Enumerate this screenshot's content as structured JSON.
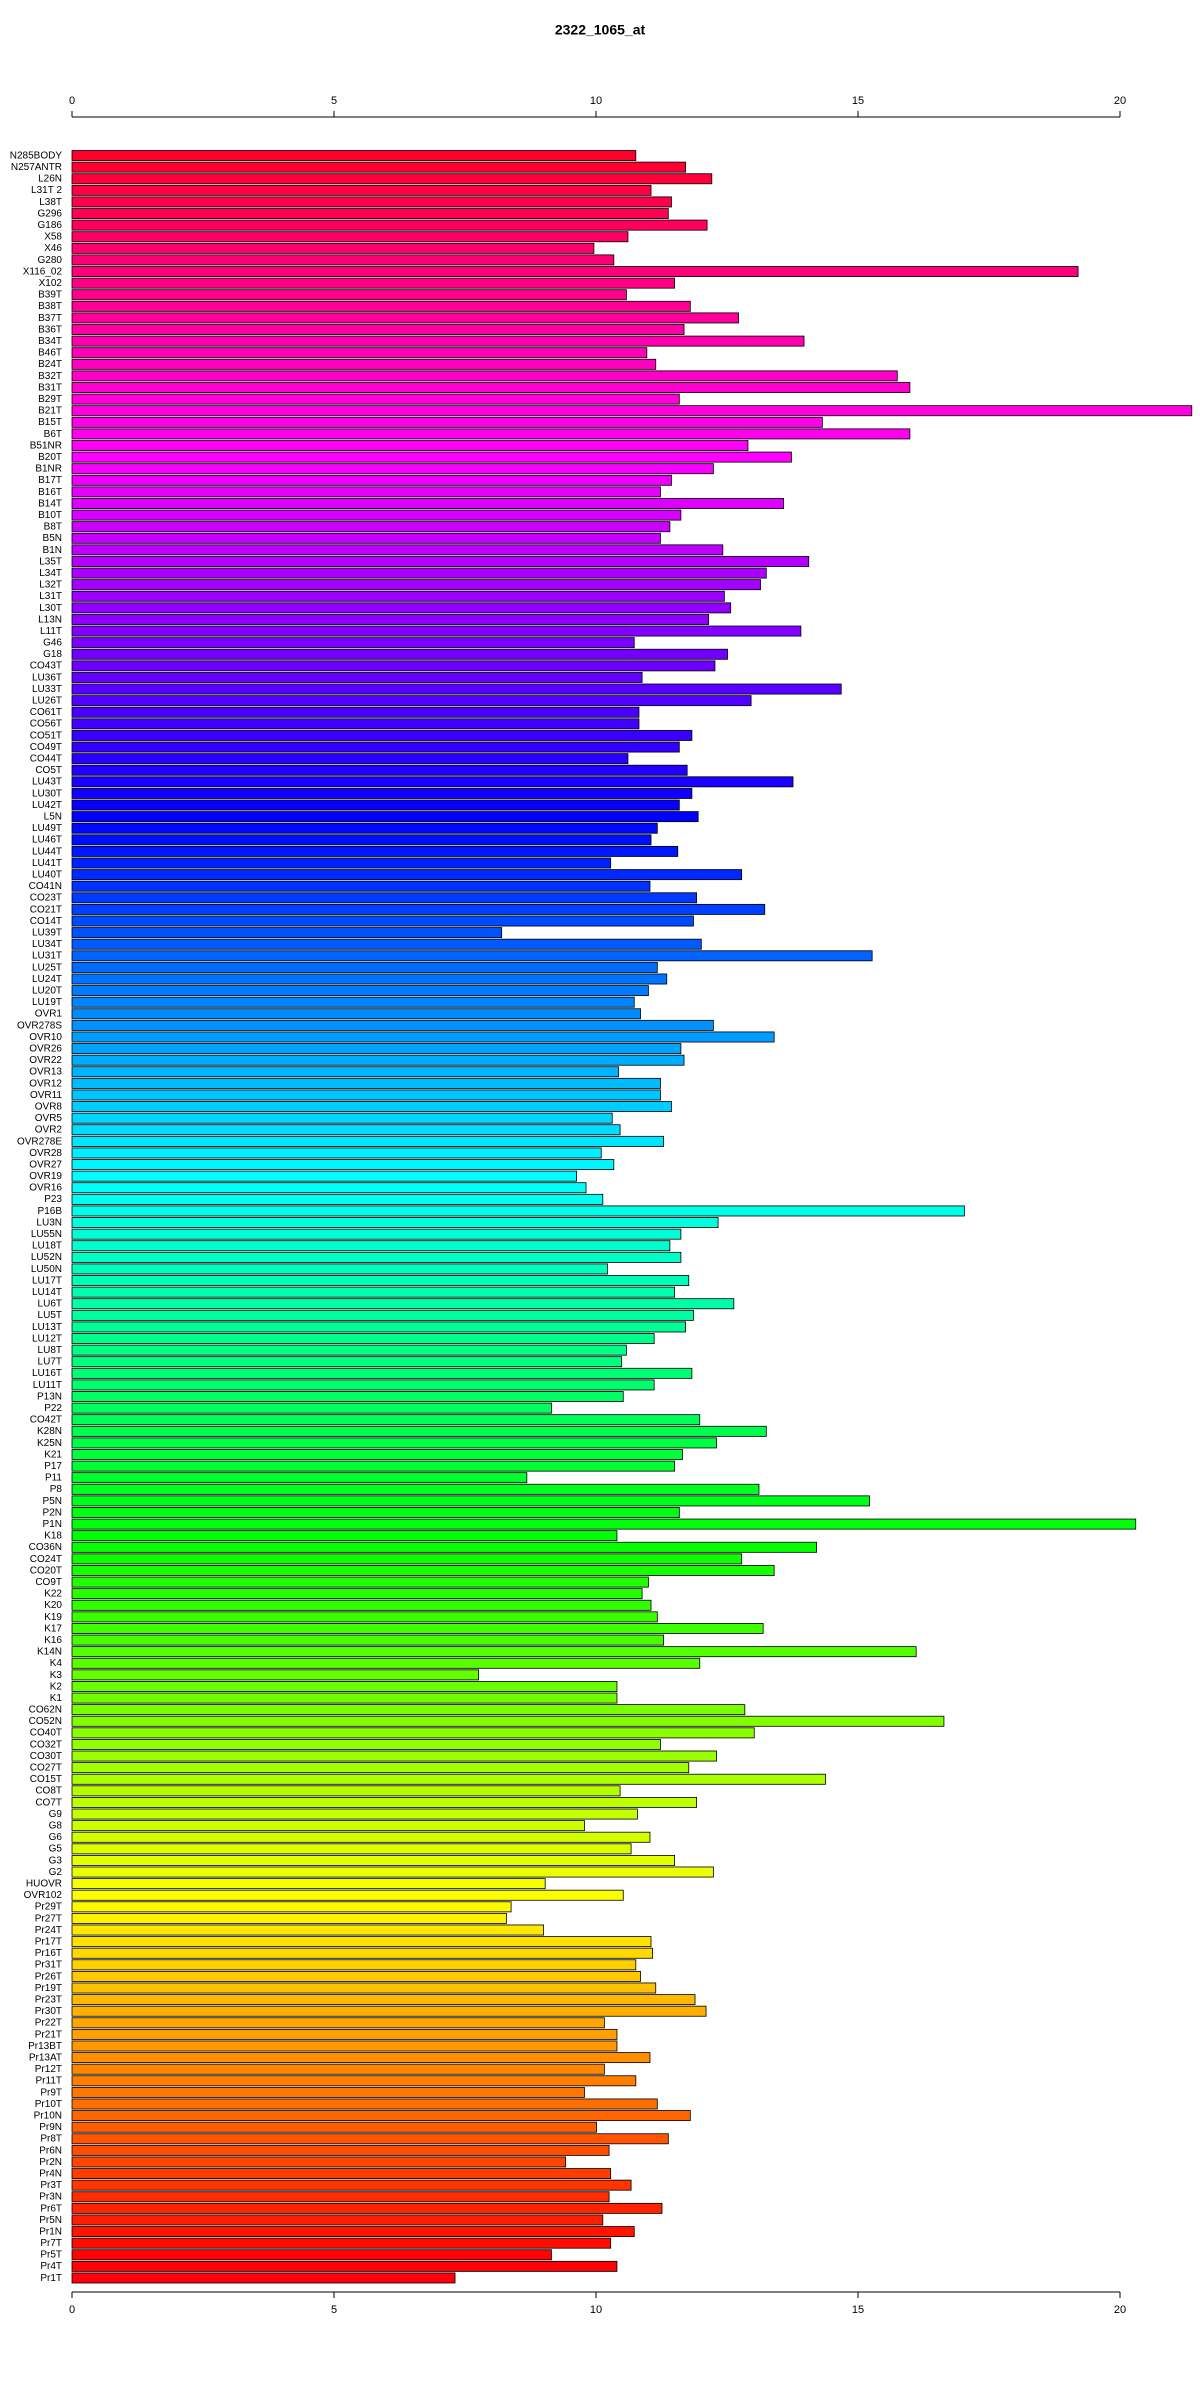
{
  "chart_data": {
    "type": "barh",
    "title": "2322_1065_at",
    "categories": [
      "N285BODY",
      "N257ANTR",
      "L26N",
      "L31T 2",
      "L38T",
      "G296",
      "G186",
      "X58",
      "X46",
      "G280",
      "X116_02",
      "X102",
      "B39T",
      "B38T",
      "B37T",
      "B36T",
      "B34T",
      "B46T",
      "B24T",
      "B32T",
      "B31T",
      "B29T",
      "B21T",
      "B15T",
      "B6T",
      "B51NR",
      "B20T",
      "B1NR",
      "B17T",
      "B16T",
      "B14T",
      "B10T",
      "B8T",
      "B5N",
      "B1N",
      "L35T",
      "L34T",
      "L32T",
      "L31T",
      "L30T",
      "L13N",
      "L11T",
      "G46",
      "G18",
      "CO43T",
      "LU36T",
      "LU33T",
      "LU26T",
      "CO61T",
      "CO56T",
      "CO51T",
      "CO49T",
      "CO44T",
      "CO5T",
      "LU43T",
      "LU30T",
      "LU42T",
      "L5N",
      "LU49T",
      "LU46T",
      "LU44T",
      "LU41T",
      "LU40T",
      "CO41N",
      "CO23T",
      "CO21T",
      "CO14T",
      "LU39T",
      "LU34T",
      "LU31T",
      "LU25T",
      "LU24T",
      "LU20T",
      "LU19T",
      "OVR1",
      "OVR278S",
      "OVR10",
      "OVR26",
      "OVR22",
      "OVR13",
      "OVR12",
      "OVR11",
      "OVR8",
      "OVR5",
      "OVR2",
      "OVR278E",
      "OVR28",
      "OVR27",
      "OVR19",
      "OVR16",
      "P23",
      "P16B",
      "LU3N",
      "LU55N",
      "LU18T",
      "LU52N",
      "LU50N",
      "LU17T",
      "LU14T",
      "LU6T",
      "LU5T",
      "LU13T",
      "LU12T",
      "LU8T",
      "LU7T",
      "LU16T",
      "LU11T",
      "P13N",
      "P22",
      "CO42T",
      "K28N",
      "K25N",
      "K21",
      "P17",
      "P11",
      "P8",
      "P5N",
      "P2N",
      "P1N",
      "K18",
      "CO36N",
      "CO24T",
      "CO20T",
      "CO9T",
      "K22",
      "K20",
      "K19",
      "K17",
      "K16",
      "K14N",
      "K4",
      "K3",
      "K2",
      "K1",
      "CO62N",
      "CO52N",
      "CO40T",
      "CO32T",
      "CO30T",
      "CO27T",
      "CO15T",
      "CO8T",
      "CO7T",
      "G9",
      "G8",
      "G6",
      "G5",
      "G3",
      "G2",
      "HUOVR",
      "OVR102",
      "Pr29T",
      "Pr27T",
      "Pr24T",
      "Pr17T",
      "Pr16T",
      "Pr31T",
      "Pr26T",
      "Pr19T",
      "Pr23T",
      "Pr30T",
      "Pr22T",
      "Pr21T",
      "Pr13BT",
      "Pr13AT",
      "Pr12T",
      "Pr11T",
      "Pr9T",
      "Pr10T",
      "Pr10N",
      "Pr9N",
      "Pr8T",
      "Pr6N",
      "Pr2N",
      "Pr4N",
      "Pr3T",
      "Pr3N",
      "Pr6T",
      "Pr5N",
      "Pr1N",
      "Pr7T",
      "Pr5T",
      "Pr4T",
      "Pr1T"
    ],
    "values": [
      10.76,
      11.71,
      12.21,
      11.05,
      11.44,
      11.38,
      12.12,
      10.61,
      9.96,
      10.34,
      19.2,
      11.5,
      10.58,
      11.8,
      12.72,
      11.68,
      13.97,
      10.97,
      11.14,
      15.75,
      15.99,
      11.59,
      21.37,
      14.32,
      15.99,
      12.9,
      13.73,
      12.24,
      11.44,
      11.23,
      13.58,
      11.62,
      11.41,
      11.23,
      12.42,
      14.06,
      13.25,
      13.14,
      12.45,
      12.57,
      12.15,
      13.91,
      10.73,
      12.51,
      12.27,
      10.88,
      14.68,
      12.96,
      10.82,
      10.82,
      11.83,
      11.59,
      10.61,
      11.74,
      13.76,
      11.83,
      11.59,
      11.95,
      11.17,
      11.05,
      11.56,
      10.28,
      12.78,
      11.03,
      11.92,
      13.22,
      11.86,
      8.2,
      12.01,
      15.27,
      11.17,
      11.35,
      11.0,
      10.73,
      10.85,
      12.24,
      13.4,
      11.62,
      11.68,
      10.43,
      11.23,
      11.23,
      11.44,
      10.31,
      10.46,
      11.29,
      10.1,
      10.34,
      9.63,
      9.81,
      10.13,
      17.03,
      12.33,
      11.62,
      11.41,
      11.62,
      10.22,
      11.77,
      11.5,
      12.63,
      11.86,
      11.71,
      11.11,
      10.58,
      10.49,
      11.83,
      11.11,
      10.52,
      9.15,
      11.98,
      13.25,
      12.3,
      11.65,
      11.5,
      8.68,
      13.11,
      15.22,
      11.59,
      20.3,
      10.4,
      14.21,
      12.78,
      13.4,
      11.0,
      10.88,
      11.05,
      11.17,
      13.19,
      11.29,
      16.11,
      11.98,
      7.76,
      10.4,
      10.4,
      12.84,
      16.64,
      13.02,
      11.23,
      12.3,
      11.77,
      14.38,
      10.46,
      11.92,
      10.79,
      9.78,
      11.03,
      10.67,
      11.5,
      12.24,
      9.03,
      10.52,
      8.38,
      8.29,
      9.0,
      11.05,
      11.08,
      10.76,
      10.85,
      11.14,
      11.89,
      12.1,
      10.16,
      10.4,
      10.4,
      11.03,
      10.16,
      10.76,
      9.78,
      11.17,
      11.8,
      10.01,
      11.38,
      10.25,
      9.42,
      10.28,
      10.67,
      10.25,
      11.26,
      10.13,
      10.73,
      10.28,
      9.15,
      10.4,
      7.31
    ],
    "xlim": [
      0,
      20
    ],
    "xticks": [
      0,
      5,
      10,
      15,
      20
    ],
    "palette": "rainbow",
    "bar_edge": "#000000"
  }
}
